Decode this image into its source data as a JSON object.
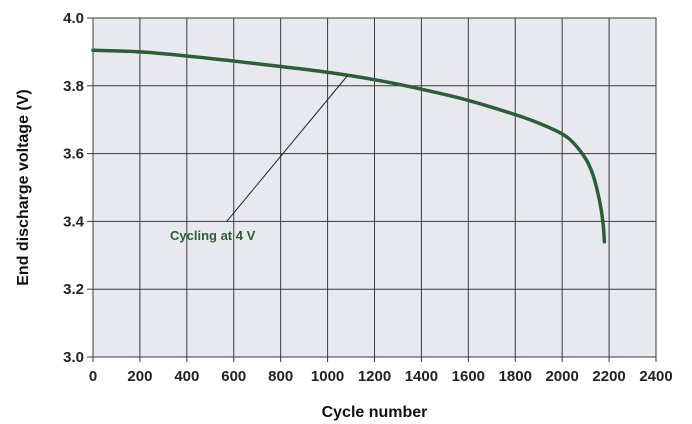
{
  "chart_data": {
    "type": "line",
    "title": "",
    "xlabel": "Cycle number",
    "ylabel": "End discharge voltage (V)",
    "xlim": [
      0,
      2400
    ],
    "ylim": [
      3.0,
      4.0
    ],
    "x_ticks": [
      "0",
      "200",
      "400",
      "600",
      "800",
      "1000",
      "1200",
      "1400",
      "1600",
      "1800",
      "2000",
      "2200",
      "2400"
    ],
    "y_ticks": [
      "3.0",
      "3.2",
      "3.4",
      "3.6",
      "3.8",
      "4.0"
    ],
    "grid": true,
    "legend": "none",
    "colors": {
      "plot_background": "#e8e9ef",
      "grid": "#3a3a3a",
      "series": "#2c5e38",
      "leader_line": "#222222"
    },
    "series": [
      {
        "x": [
          0,
          200,
          400,
          600,
          800,
          1000,
          1200,
          1400,
          1600,
          1800,
          1900,
          2000,
          2050,
          2100,
          2130,
          2150,
          2165,
          2175,
          2180
        ],
        "y": [
          3.905,
          3.9,
          3.888,
          3.873,
          3.857,
          3.84,
          3.818,
          3.79,
          3.757,
          3.715,
          3.69,
          3.658,
          3.63,
          3.585,
          3.54,
          3.49,
          3.44,
          3.39,
          3.34
        ]
      }
    ],
    "annotations": [
      {
        "text": "Cycling at 4 V",
        "label_at": [
          510,
          3.345
        ],
        "line_from": [
          570,
          3.4
        ],
        "line_to": [
          1085,
          3.83
        ]
      }
    ]
  }
}
